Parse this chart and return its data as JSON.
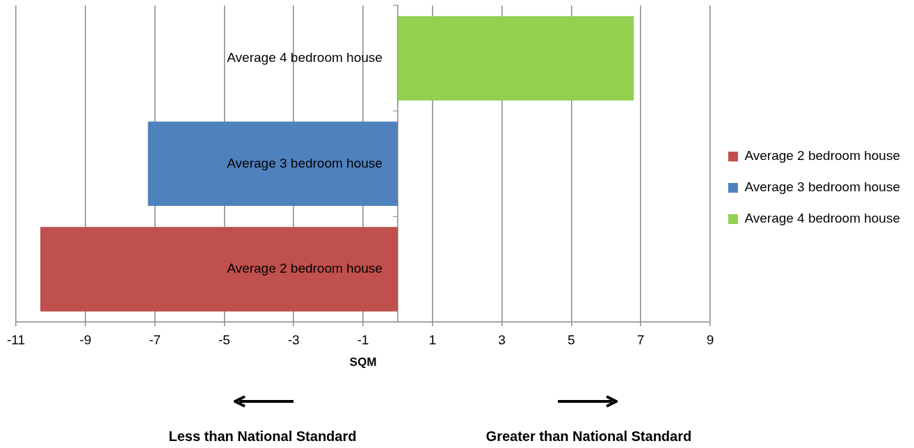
{
  "chart_data": {
    "type": "bar",
    "orientation": "horizontal",
    "categories": [
      "Average 4 bedroom house",
      "Average 3 bedroom house",
      "Average 2 bedroom house"
    ],
    "series": [
      {
        "name": "Average 2 bedroom house",
        "color": "#c0504d",
        "values": [
          null,
          null,
          -10.3
        ]
      },
      {
        "name": "Average 3 bedroom house",
        "color": "#4f81bd",
        "values": [
          null,
          -7.2,
          null
        ]
      },
      {
        "name": "Average 4 bedroom house",
        "color": "#92d050",
        "values": [
          6.8,
          null,
          null
        ]
      }
    ],
    "xlim": [
      -11,
      9
    ],
    "xticks": [
      -11,
      -9,
      -7,
      -5,
      -3,
      -1,
      1,
      3,
      5,
      7,
      9
    ],
    "xlabel": "SQM",
    "grid": "x",
    "legend": "right",
    "annotations": [
      "Less than National Standard",
      "Greater than National Standard"
    ]
  }
}
